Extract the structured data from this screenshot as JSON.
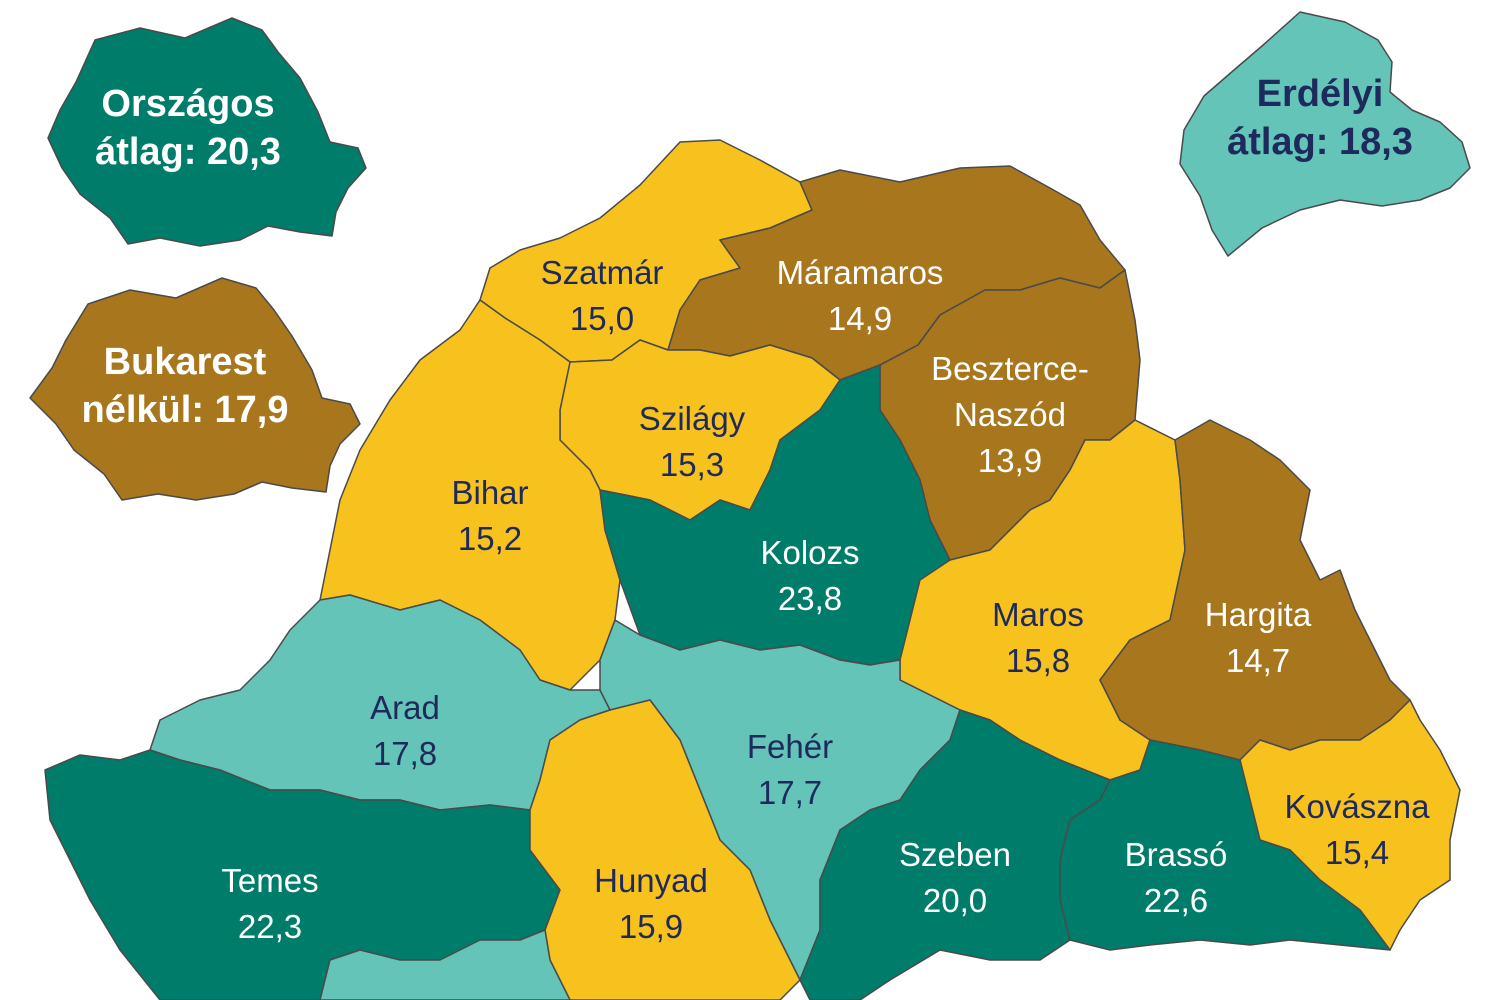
{
  "legend_colors": {
    "yellow": "#f7c11e",
    "brown": "#a8761d",
    "dark_teal": "#007c6a",
    "light_teal": "#63c4b7"
  },
  "insets": {
    "national": {
      "line1": "Országos",
      "line2": "átlag: 20,3",
      "color": "#007c6a"
    },
    "without_bucharest": {
      "line1": "Bukarest",
      "line2": "nélkül: 17,9",
      "color": "#a8761d"
    },
    "transylvania": {
      "line1": "Erdélyi",
      "line2": "átlag: 18,3",
      "color": "#63c4b7"
    }
  },
  "counties": [
    {
      "name": "Szatmár",
      "value": "15,0",
      "color": "#f7c11e"
    },
    {
      "name": "Máramaros",
      "value": "14,9",
      "color": "#a8761d"
    },
    {
      "name": "Beszterce-",
      "name2": "Naszód",
      "value": "13,9",
      "color": "#a8761d"
    },
    {
      "name": "Szilágy",
      "value": "15,3",
      "color": "#f7c11e"
    },
    {
      "name": "Bihar",
      "value": "15,2",
      "color": "#f7c11e"
    },
    {
      "name": "Kolozs",
      "value": "23,8",
      "color": "#007c6a"
    },
    {
      "name": "Maros",
      "value": "15,8",
      "color": "#f7c11e"
    },
    {
      "name": "Hargita",
      "value": "14,7",
      "color": "#a8761d"
    },
    {
      "name": "Arad",
      "value": "17,8",
      "color": "#63c4b7"
    },
    {
      "name": "Fehér",
      "value": "17,7",
      "color": "#63c4b7"
    },
    {
      "name": "Kovászna",
      "value": "15,4",
      "color": "#f7c11e"
    },
    {
      "name": "Temes",
      "value": "22,3",
      "color": "#007c6a"
    },
    {
      "name": "Hunyad",
      "value": "15,9",
      "color": "#f7c11e"
    },
    {
      "name": "Szeben",
      "value": "20,0",
      "color": "#007c6a"
    },
    {
      "name": "Brassó",
      "value": "22,6",
      "color": "#007c6a"
    },
    {
      "name": "",
      "value": "",
      "color": "#63c4b7"
    }
  ]
}
